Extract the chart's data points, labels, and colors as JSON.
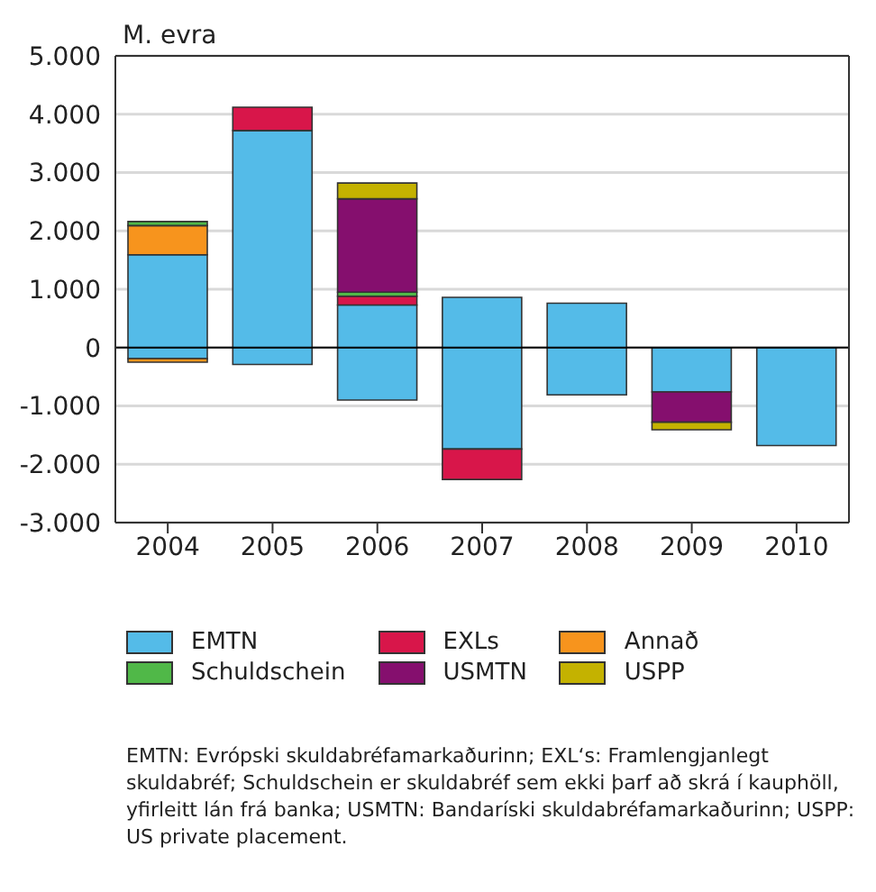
{
  "chart_data": {
    "type": "bar",
    "stacked": true,
    "ylabel": "M. evra",
    "categories": [
      "2004",
      "2005",
      "2006",
      "2007",
      "2008",
      "2009",
      "2010"
    ],
    "series": [
      {
        "name": "EMTN",
        "color": "#54bbe8",
        "values": [
          1590,
          3720,
          730,
          860,
          760,
          0,
          0
        ]
      },
      {
        "name": "EXLs",
        "color": "#d8164a",
        "values": [
          0,
          400,
          150,
          0,
          0,
          0,
          0
        ]
      },
      {
        "name": "Annað",
        "color": "#f7941d",
        "values": [
          500,
          0,
          0,
          0,
          0,
          0,
          0
        ]
      },
      {
        "name": "Schuldschein",
        "color": "#50b848",
        "values": [
          70,
          0,
          70,
          0,
          0,
          0,
          0
        ]
      },
      {
        "name": "USMTN",
        "color": "#850f6e",
        "values": [
          0,
          0,
          1600,
          0,
          0,
          0,
          0
        ]
      },
      {
        "name": "USPP",
        "color": "#c4b200",
        "values": [
          0,
          0,
          270,
          0,
          0,
          0,
          0
        ]
      },
      {
        "color": "#54bbe8",
        "values": [
          -190,
          -290,
          -900,
          -1740,
          -810,
          -760,
          -1680
        ]
      },
      {
        "color": "#f7941d",
        "values": [
          -60,
          0,
          0,
          0,
          0,
          0,
          0
        ]
      },
      {
        "color": "#d8164a",
        "values": [
          0,
          0,
          0,
          -520,
          0,
          0,
          0
        ]
      },
      {
        "color": "#850f6e",
        "values": [
          0,
          0,
          0,
          0,
          0,
          -520,
          0
        ]
      },
      {
        "color": "#c4b200",
        "values": [
          0,
          0,
          0,
          0,
          0,
          -130,
          0
        ]
      }
    ],
    "ylim": [
      -3000,
      5000
    ],
    "yticks": [
      {
        "value": -3000,
        "label": "-3.000"
      },
      {
        "value": -2000,
        "label": "-2.000"
      },
      {
        "value": -1000,
        "label": "-1.000"
      },
      0,
      {
        "value": 1000,
        "label": "1.000"
      },
      {
        "value": 2000,
        "label": "2.000"
      },
      {
        "value": 3000,
        "label": "3.000"
      },
      {
        "value": 4000,
        "label": "4.000"
      },
      {
        "value": 5000,
        "label": "5.000"
      }
    ],
    "ref_lines": [
      {
        "axis": "y",
        "value": 0,
        "color": "#000000"
      }
    ],
    "grid": "y",
    "legend": "bottom",
    "annotations": [
      "EMTN: Evrópski skuldabréfamarkaðurinn; EXL‘s: Framlengjanlegt skuldabréf; Schuldschein er skuldabréf sem ekki þarf að skrá í kauphöll, yfirleitt lán frá banka; USMTN: Bandaríski skuldabréfamarkaðurinn; USPP: US private placement."
    ]
  }
}
